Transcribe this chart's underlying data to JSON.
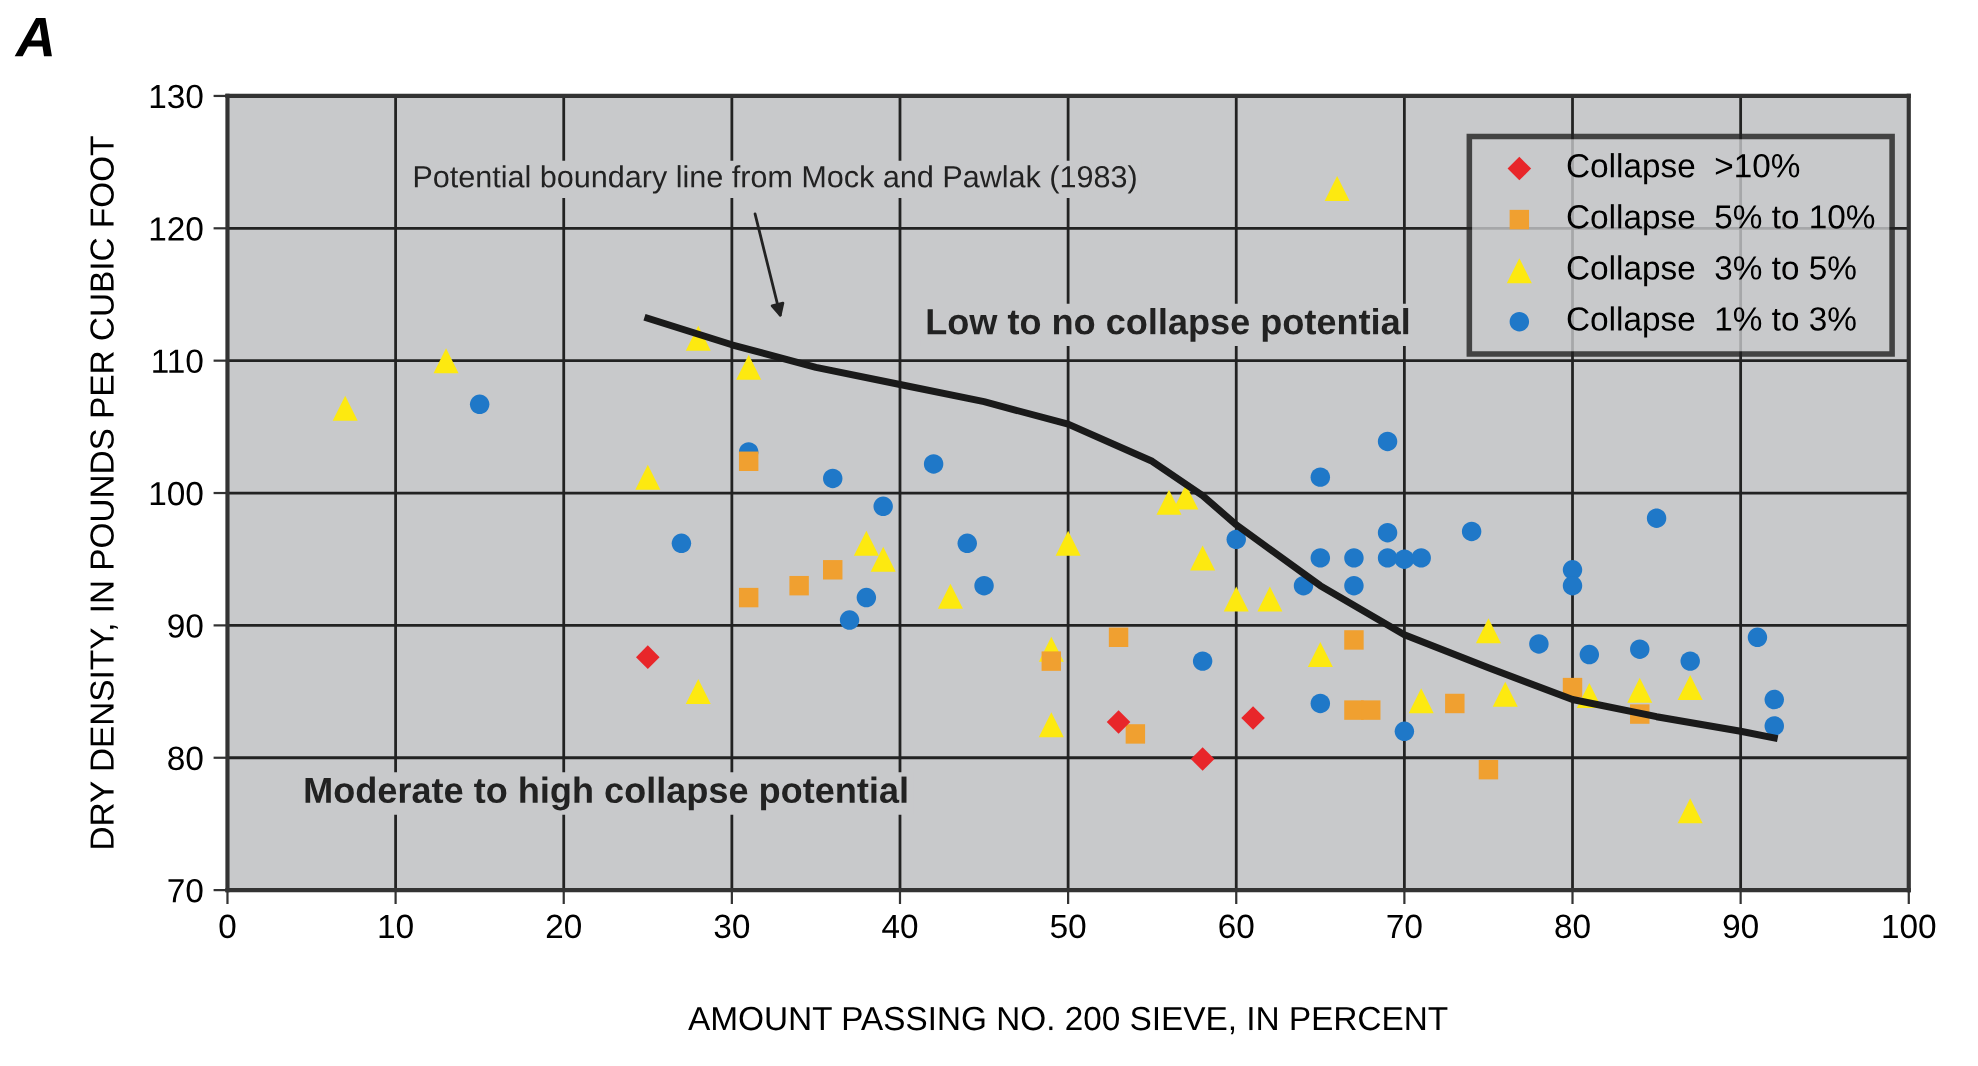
{
  "chart_data": {
    "type": "scatter",
    "title": "A",
    "xlabel": "AMOUNT PASSING NO. 200 SIEVE, IN PERCENT",
    "ylabel": "DRY DENSITY, IN POUNDS PER CUBIC FOOT",
    "xlim": [
      0,
      100
    ],
    "ylim": [
      70,
      130
    ],
    "xticks": [
      0,
      10,
      20,
      30,
      40,
      50,
      60,
      70,
      80,
      90,
      100
    ],
    "yticks": [
      70,
      80,
      90,
      100,
      110,
      120,
      130
    ],
    "grid": true,
    "legend": "top right",
    "annotations": [
      "Potential boundary line from Mock and Pawlak (1983)",
      "Low to no collapse potential",
      "Moderate to high collapse potential"
    ],
    "series": [
      {
        "name": "Collapse  >10%",
        "color": "#e8262a",
        "marker": "diamond",
        "x": [
          25,
          53,
          58,
          61
        ],
        "values": [
          87.6,
          82.7,
          79.9,
          83
        ]
      },
      {
        "name": "Collapse  5% to 10%",
        "color": "#f0a030",
        "marker": "square",
        "x": [
          31,
          31,
          34,
          36,
          49,
          53,
          54,
          67,
          67,
          68,
          73,
          75,
          80,
          84
        ],
        "values": [
          102.4,
          92.1,
          93,
          94.2,
          87.3,
          89.1,
          81.8,
          88.9,
          83.6,
          83.6,
          84.1,
          79.1,
          85.3,
          83.3
        ]
      },
      {
        "name": "Collapse  3% to 5%",
        "color": "#fde910",
        "marker": "triangle",
        "x": [
          7,
          13,
          25,
          28,
          28,
          31,
          38,
          39,
          43,
          49,
          49,
          50,
          66,
          56,
          57,
          58,
          60,
          62,
          65,
          71,
          75,
          76,
          81,
          84,
          87,
          87
        ],
        "values": [
          106.4,
          110,
          101.2,
          111.7,
          85,
          109.5,
          96.2,
          95,
          92.2,
          88.2,
          82.5,
          96.2,
          123,
          99.3,
          99.7,
          95.1,
          92,
          92,
          87.8,
          84.3,
          89.6,
          84.8,
          84.7,
          85.1,
          85.3,
          76
        ]
      },
      {
        "name": "Collapse  1% to 3%",
        "color": "#1f78c8",
        "marker": "circle",
        "x": [
          15,
          27,
          31,
          36,
          37,
          38,
          39,
          42,
          44,
          45,
          58,
          60,
          64,
          65,
          65,
          65,
          67,
          67,
          69,
          69,
          69,
          70,
          71,
          74,
          70,
          78,
          80,
          80,
          81,
          84,
          85,
          87,
          91,
          92,
          92
        ],
        "values": [
          106.7,
          96.2,
          103.1,
          101.1,
          90.4,
          92.1,
          99,
          102.2,
          96.2,
          93,
          87.3,
          96.5,
          93,
          101.2,
          95.1,
          84.1,
          95.1,
          93,
          103.9,
          97,
          95.1,
          95,
          95.1,
          97.1,
          82,
          88.6,
          94.2,
          93,
          87.8,
          88.2,
          98.1,
          87.3,
          89.1,
          84.4,
          82.4
        ]
      },
      {
        "type": "line",
        "color": "#1a1a1a",
        "marker": "none",
        "line_style": "solid",
        "x": [
          25,
          30,
          35,
          40,
          45,
          50,
          55,
          58,
          60,
          65,
          70,
          75,
          80,
          85,
          90,
          92
        ],
        "values": [
          113.2,
          111.2,
          109.5,
          108.2,
          106.9,
          105.2,
          102.4,
          99.8,
          97.6,
          93,
          89.3,
          86.8,
          84.4,
          83.1,
          82,
          81.5
        ]
      }
    ]
  }
}
